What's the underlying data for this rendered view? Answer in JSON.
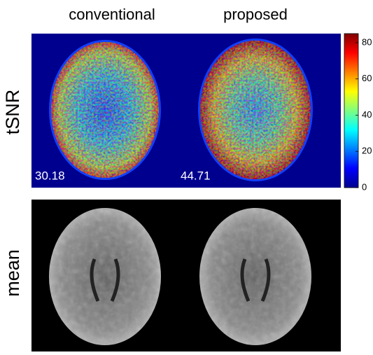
{
  "columns": [
    "conventional",
    "proposed"
  ],
  "rows": [
    "tSNR",
    "mean"
  ],
  "tsnr_values": [
    30.18,
    44.71
  ],
  "colorbar": {
    "lim": [
      0,
      85
    ],
    "ticks": [
      0,
      20,
      40,
      60,
      80
    ]
  }
}
